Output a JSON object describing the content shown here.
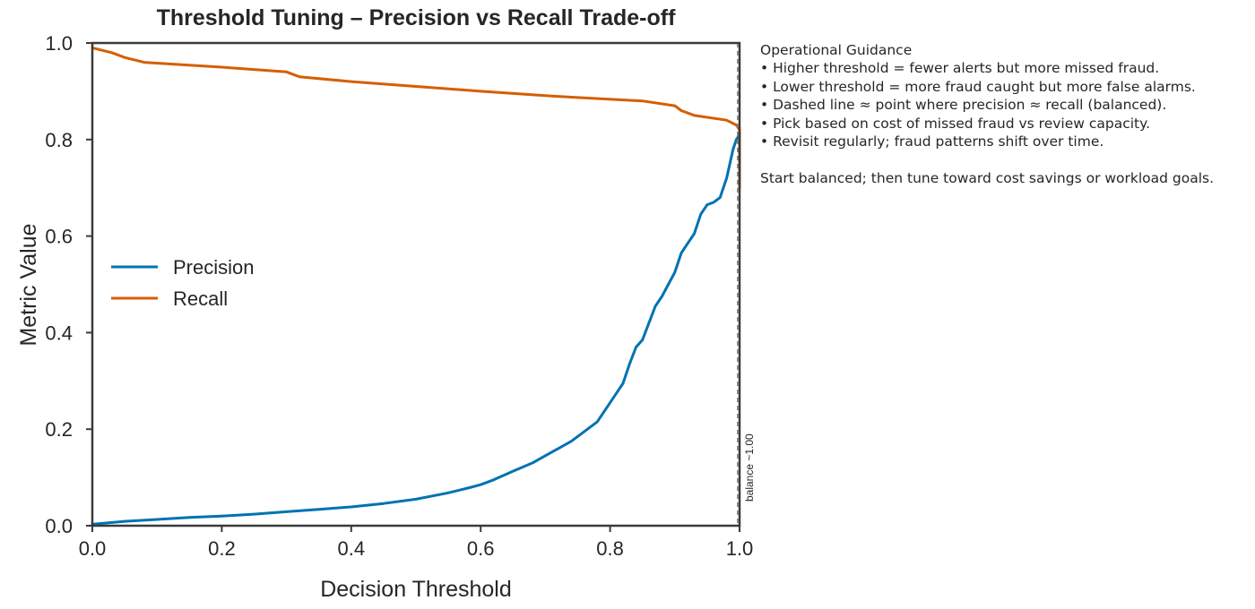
{
  "chart_data": {
    "type": "line",
    "title": "Threshold Tuning – Precision vs Recall Trade-off",
    "xlabel": "Decision Threshold",
    "ylabel": "Metric Value",
    "xlim": [
      0,
      1
    ],
    "ylim": [
      0,
      1
    ],
    "xticks": [
      "0.0",
      "0.2",
      "0.4",
      "0.6",
      "0.8",
      "1.0"
    ],
    "yticks": [
      "0.0",
      "0.2",
      "0.4",
      "0.6",
      "0.8",
      "1.0"
    ],
    "grid": false,
    "legend_position": "center-left",
    "series": [
      {
        "name": "Precision",
        "color": "#0072b2",
        "x": [
          0.0,
          0.05,
          0.1,
          0.15,
          0.2,
          0.25,
          0.3,
          0.35,
          0.4,
          0.45,
          0.5,
          0.55,
          0.58,
          0.6,
          0.62,
          0.65,
          0.68,
          0.7,
          0.72,
          0.74,
          0.76,
          0.78,
          0.79,
          0.8,
          0.81,
          0.82,
          0.83,
          0.84,
          0.85,
          0.86,
          0.87,
          0.88,
          0.89,
          0.9,
          0.91,
          0.92,
          0.93,
          0.94,
          0.95,
          0.96,
          0.97,
          0.98,
          0.99,
          0.995,
          1.0
        ],
        "values": [
          0.003,
          0.009,
          0.013,
          0.017,
          0.02,
          0.024,
          0.029,
          0.034,
          0.039,
          0.046,
          0.055,
          0.068,
          0.078,
          0.085,
          0.095,
          0.113,
          0.13,
          0.145,
          0.16,
          0.175,
          0.195,
          0.215,
          0.235,
          0.255,
          0.275,
          0.295,
          0.335,
          0.37,
          0.385,
          0.42,
          0.455,
          0.475,
          0.5,
          0.525,
          0.565,
          0.585,
          0.605,
          0.645,
          0.665,
          0.67,
          0.68,
          0.72,
          0.78,
          0.8,
          0.81
        ]
      },
      {
        "name": "Recall",
        "color": "#d55e00",
        "x": [
          0.0,
          0.03,
          0.05,
          0.08,
          0.2,
          0.3,
          0.32,
          0.4,
          0.5,
          0.6,
          0.71,
          0.85,
          0.9,
          0.91,
          0.93,
          0.98,
          0.995,
          1.0,
          1.0
        ],
        "values": [
          0.99,
          0.98,
          0.97,
          0.96,
          0.95,
          0.94,
          0.93,
          0.92,
          0.91,
          0.9,
          0.89,
          0.88,
          0.87,
          0.86,
          0.85,
          0.84,
          0.83,
          0.82,
          0.7
        ]
      }
    ],
    "balance_line": {
      "x": 0.997,
      "label": "balance ~1.00"
    }
  },
  "guidance": {
    "title": "Operational Guidance",
    "lines": [
      "• Higher threshold = fewer alerts but more missed fraud.",
      "• Lower threshold = more fraud caught but more false alarms.",
      "• Dashed line ≈ point where precision ≈ recall (balanced).",
      "• Pick based on cost of missed fraud vs review capacity.",
      "• Revisit regularly; fraud patterns shift over time."
    ],
    "footer": "Start balanced; then tune toward cost savings or workload goals."
  }
}
